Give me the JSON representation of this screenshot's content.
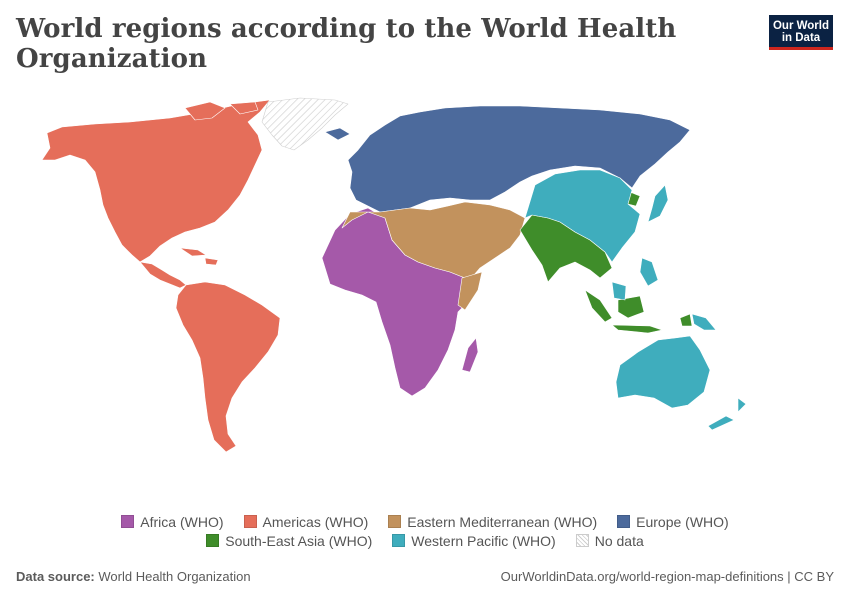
{
  "title": "World regions according to the World Health Organization",
  "logo": {
    "line1": "Our World",
    "line2": "in Data"
  },
  "legend": {
    "row1": [
      {
        "label": "Africa (WHO)",
        "color": "#a559a9"
      },
      {
        "label": "Americas (WHO)",
        "color": "#e56e5a"
      },
      {
        "label": "Eastern Mediterranean (WHO)",
        "color": "#c2925d"
      },
      {
        "label": "Europe (WHO)",
        "color": "#4c6a9c"
      }
    ],
    "row2": [
      {
        "label": "South-East Asia (WHO)",
        "color": "#3f8d2a"
      },
      {
        "label": "Western Pacific (WHO)",
        "color": "#3fadbd"
      },
      {
        "label": "No data",
        "color": "hatched"
      }
    ]
  },
  "footer": {
    "source_prefix": "Data source:",
    "source": "World Health Organization",
    "link": "OurWorldinData.org/world-region-map-definitions | CC BY"
  },
  "regions": {
    "africa": "#a559a9",
    "americas": "#e56e5a",
    "eastern_mediterranean": "#c2925d",
    "europe": "#4c6a9c",
    "south_east_asia": "#3f8d2a",
    "western_pacific": "#3fadbd"
  }
}
